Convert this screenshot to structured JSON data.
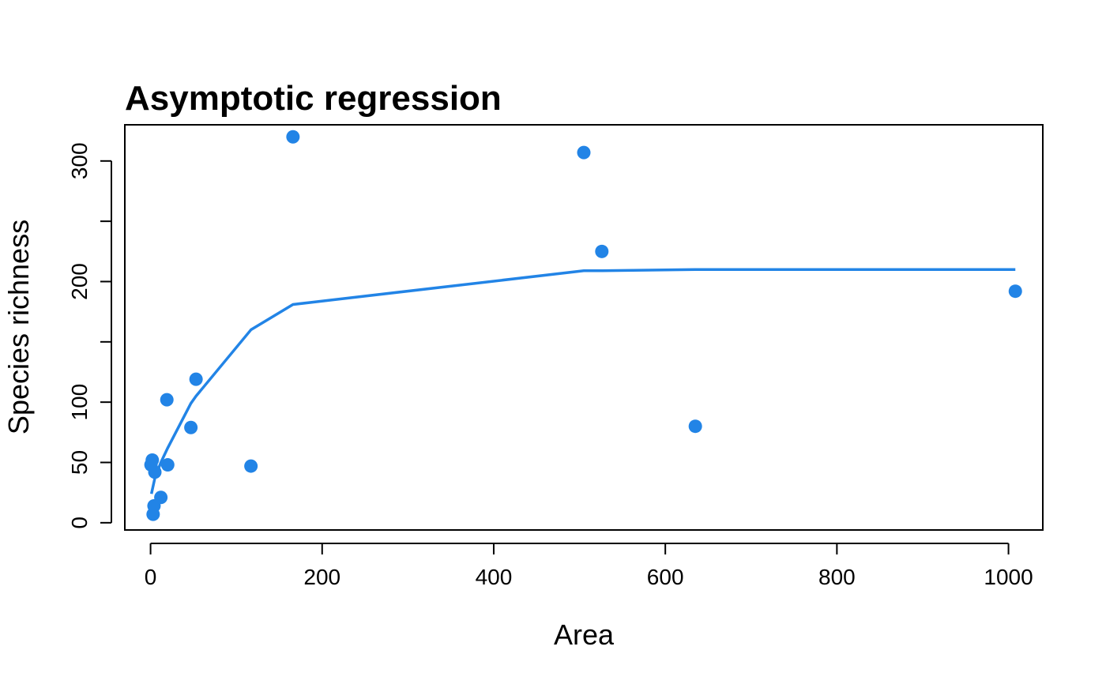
{
  "colors": {
    "series": "#2284e6",
    "axis": "#000000",
    "background": "#ffffff"
  },
  "chart_data": {
    "type": "scatter",
    "title": "Asymptotic regression",
    "xlabel": "Area",
    "ylabel": "Species richness",
    "xlim": [
      -30,
      1040
    ],
    "ylim": [
      -6,
      330
    ],
    "x_ticks": [
      0,
      200,
      400,
      600,
      800,
      1000
    ],
    "y_ticks": [
      0,
      50,
      100,
      150,
      200,
      250,
      300
    ],
    "y_tick_labels": [
      "0",
      "50",
      "100",
      "",
      "200",
      "",
      "300"
    ],
    "grid": false,
    "legend": "none",
    "series": [
      {
        "kind": "points",
        "x": [
          0.5,
          2,
          3,
          4,
          5,
          12,
          19,
          20,
          47,
          53,
          117,
          166,
          505,
          526,
          635,
          1008
        ],
        "y": [
          48,
          52,
          7,
          14,
          42,
          21,
          102,
          48,
          79,
          119,
          47,
          320,
          307,
          225,
          80,
          192
        ]
      },
      {
        "kind": "line",
        "x": [
          1,
          5,
          12,
          20,
          47,
          53,
          117,
          166,
          505,
          526,
          635,
          1008
        ],
        "y": [
          24,
          37,
          50,
          62,
          99,
          105,
          160,
          181,
          209,
          209,
          210,
          210
        ]
      }
    ]
  }
}
